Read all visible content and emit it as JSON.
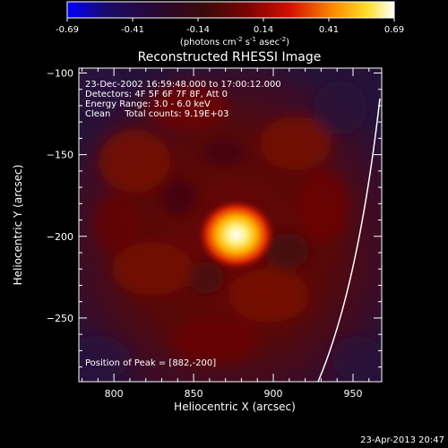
{
  "colorbar": {
    "ticks": [
      "-0.69",
      "-0.41",
      "-0.14",
      "0.14",
      "0.41",
      "0.69"
    ],
    "unit_base": "(photons cm",
    "unit_exp1": "-2",
    "unit_mid1": " s",
    "unit_exp2": "-1",
    "unit_mid2": " asec",
    "unit_exp3": "-2",
    "unit_end": ")"
  },
  "chart_data": {
    "type": "heatmap",
    "title": "Reconstructed RHESSI Image",
    "xlabel": "Heliocentric X (arcsec)",
    "ylabel": "Heliocentric Y (arcsec)",
    "xlim": [
      778,
      968
    ],
    "ylim": [
      -289,
      -97
    ],
    "x_ticks": [
      800,
      850,
      900,
      950
    ],
    "y_ticks": [
      -100,
      -150,
      -200,
      -250
    ],
    "x_tick_labels": [
      "800",
      "850",
      "900",
      "950"
    ],
    "y_tick_labels": [
      "−100",
      "−150",
      "−200",
      "−250"
    ],
    "color_range": [
      -0.69,
      0.69
    ],
    "peak_position": [
      882,
      -200
    ],
    "annotations": [
      "23-Dec-2002 16:59:48.000 to 17:00:12.000",
      "Detectors: 4F 5F 6F 7F 8F, Att 0",
      "Energy Range: 3.0 - 6.0 keV",
      "Clean     Total counts: 9.19E+03",
      "Position of Peak = [882,-200]"
    ]
  },
  "footer": {
    "timestamp": "23-Apr-2013 20:47"
  }
}
